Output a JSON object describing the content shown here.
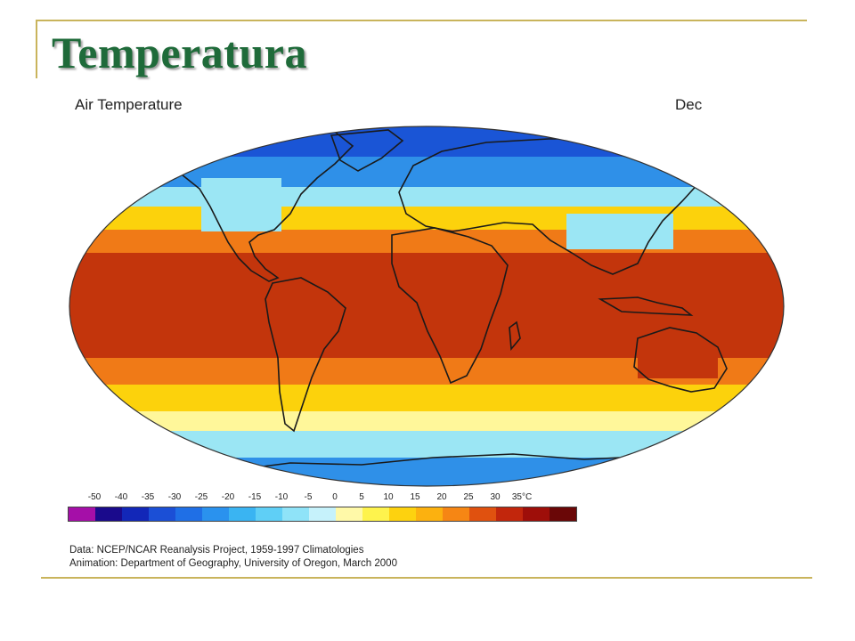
{
  "slide": {
    "title": "Temperatura"
  },
  "map": {
    "title": "Air Temperature",
    "month": "Dec",
    "colors": {
      "ocean_warm": "#d9400f",
      "ocean_hot": "#c3350c",
      "band_orange": "#f07a17",
      "band_yellow": "#fcd20c",
      "band_pale": "#fff79a",
      "band_cyan": "#9be6f4",
      "band_blue": "#2f90e8",
      "band_deep": "#1a55d6"
    }
  },
  "legend": {
    "labels": [
      "-50",
      "-40",
      "-35",
      "-30",
      "-25",
      "-20",
      "-15",
      "-10",
      "-5",
      "0",
      "5",
      "10",
      "15",
      "20",
      "25",
      "30",
      "35°C"
    ],
    "colors": [
      "#a50fa8",
      "#1a0a8c",
      "#1227b8",
      "#1b4fd6",
      "#1f6fe6",
      "#2a92ee",
      "#3ab4f2",
      "#5fcff6",
      "#8fe3f8",
      "#c6f2fb",
      "#fff9a8",
      "#fef34d",
      "#fdd20f",
      "#fcb10f",
      "#f68614",
      "#e0510f",
      "#c2260c",
      "#9e0e09",
      "#6a0707"
    ]
  },
  "credits": {
    "line1": "Data:  NCEP/NCAR Reanalysis Project, 1959-1997 Climatologies",
    "line2": "Animation:  Department of Geography, University of Oregon, March 2000"
  }
}
